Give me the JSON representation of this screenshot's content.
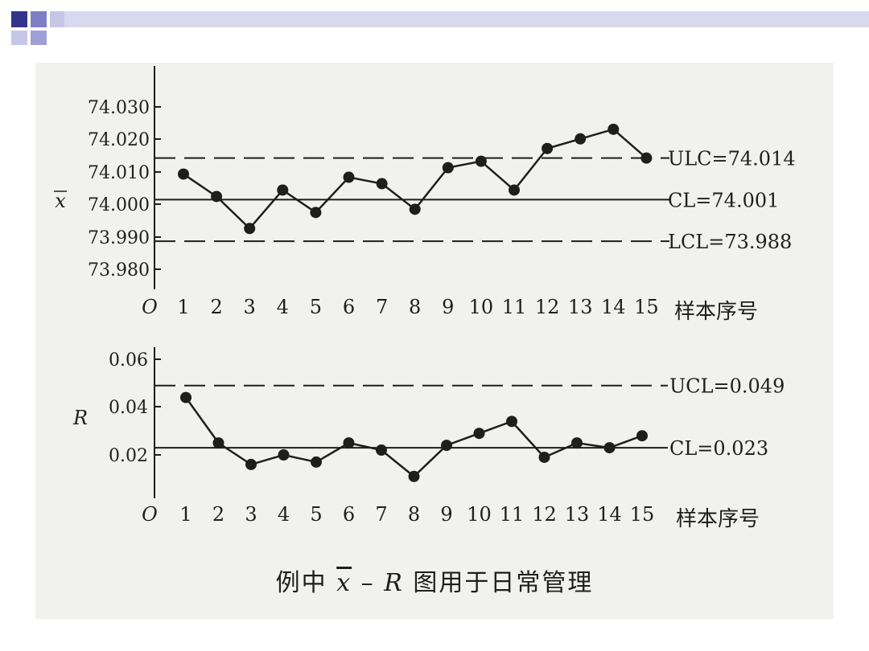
{
  "colors": {
    "deco_dark": "#34348a",
    "deco_mid": "#7e7ec4",
    "deco_light": "#c6c6e6",
    "ink": "#1e1e1e",
    "paper": "#f1f1ef"
  },
  "caption": {
    "prefix": "例中",
    "xbar": "x",
    "dash": "–",
    "r": "R",
    "suffix": "图用于日常管理"
  },
  "chart_data": [
    {
      "type": "line",
      "ylabel": "x",
      "ylabel_overline": true,
      "xlabel": "样本序号",
      "origin_label": "O",
      "categories": [
        "1",
        "2",
        "3",
        "4",
        "5",
        "6",
        "7",
        "8",
        "9",
        "10",
        "11",
        "12",
        "13",
        "14",
        "15"
      ],
      "yticks": [
        "74.030",
        "74.020",
        "74.010",
        "74.000",
        "73.990",
        "73.980"
      ],
      "ylim": [
        73.975,
        74.032
      ],
      "series": [
        {
          "values": [
            74.009,
            74.002,
            73.992,
            74.004,
            73.997,
            74.008,
            74.006,
            73.998,
            74.011,
            74.013,
            74.004,
            74.017,
            74.02,
            74.023,
            74.014
          ]
        }
      ],
      "control_lines": [
        {
          "label": "ULC=74.014",
          "value": 74.014,
          "style": "dashed"
        },
        {
          "label": "CL=74.001",
          "value": 74.001,
          "style": "solid"
        },
        {
          "label": "LCL=73.988",
          "value": 73.988,
          "style": "dashed"
        }
      ]
    },
    {
      "type": "line",
      "ylabel": "R",
      "xlabel": "样本序号",
      "origin_label": "O",
      "categories": [
        "1",
        "2",
        "3",
        "4",
        "5",
        "6",
        "7",
        "8",
        "9",
        "10",
        "11",
        "12",
        "13",
        "14",
        "15"
      ],
      "yticks": [
        "0.06",
        "0.04",
        "0.02"
      ],
      "ylim": [
        0,
        0.065
      ],
      "series": [
        {
          "values": [
            0.044,
            0.025,
            0.016,
            0.02,
            0.017,
            0.025,
            0.022,
            0.011,
            0.024,
            0.029,
            0.034,
            0.019,
            0.025,
            0.023,
            0.028
          ]
        }
      ],
      "control_lines": [
        {
          "label": "UCL=0.049",
          "value": 0.049,
          "style": "dashed"
        },
        {
          "label": "CL=0.023",
          "value": 0.023,
          "style": "solid"
        }
      ]
    }
  ]
}
